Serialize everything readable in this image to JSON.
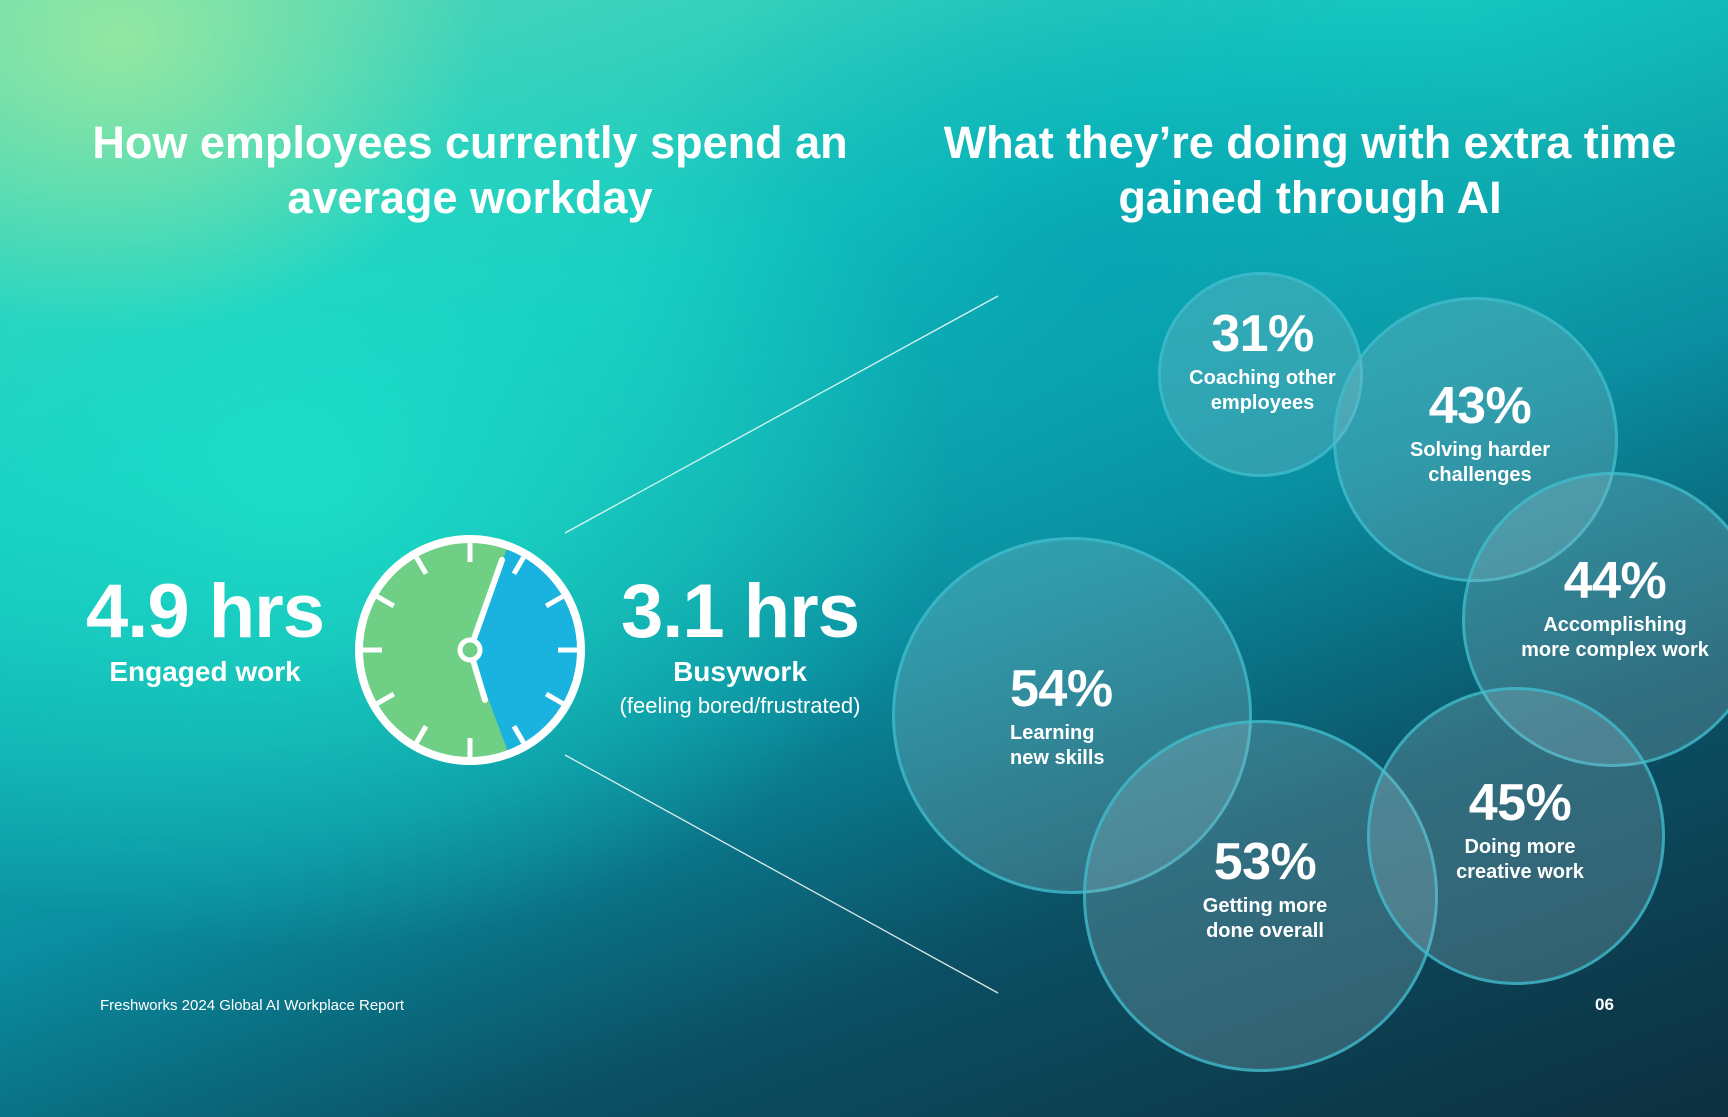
{
  "left_section": {
    "title": "How employees currently spend an average workday",
    "engaged": {
      "value": "4.9 hrs",
      "label": "Engaged work",
      "hours": 4.9,
      "color": "#6fcf85"
    },
    "busywork": {
      "value": "3.1 hrs",
      "label": "Busywork",
      "sublabel": "(feeling bored/frustrated)",
      "hours": 3.1,
      "color": "#1ab3e0"
    }
  },
  "right_section": {
    "title": "What they’re doing with extra time gained through AI",
    "bubbles": [
      {
        "percent": "31%",
        "line1": "Coaching other",
        "line2": "employees"
      },
      {
        "percent": "43%",
        "line1": "Solving harder",
        "line2": "challenges"
      },
      {
        "percent": "44%",
        "line1": "Accomplishing",
        "line2": "more complex work"
      },
      {
        "percent": "54%",
        "line1": "Learning",
        "line2": "new skills"
      },
      {
        "percent": "53%",
        "line1": "Getting more",
        "line2": "done overall"
      },
      {
        "percent": "45%",
        "line1": "Doing more",
        "line2": "creative work"
      }
    ]
  },
  "footer": {
    "report_name": "Freshworks 2024 Global AI Workplace Report",
    "page_number": "06"
  }
}
